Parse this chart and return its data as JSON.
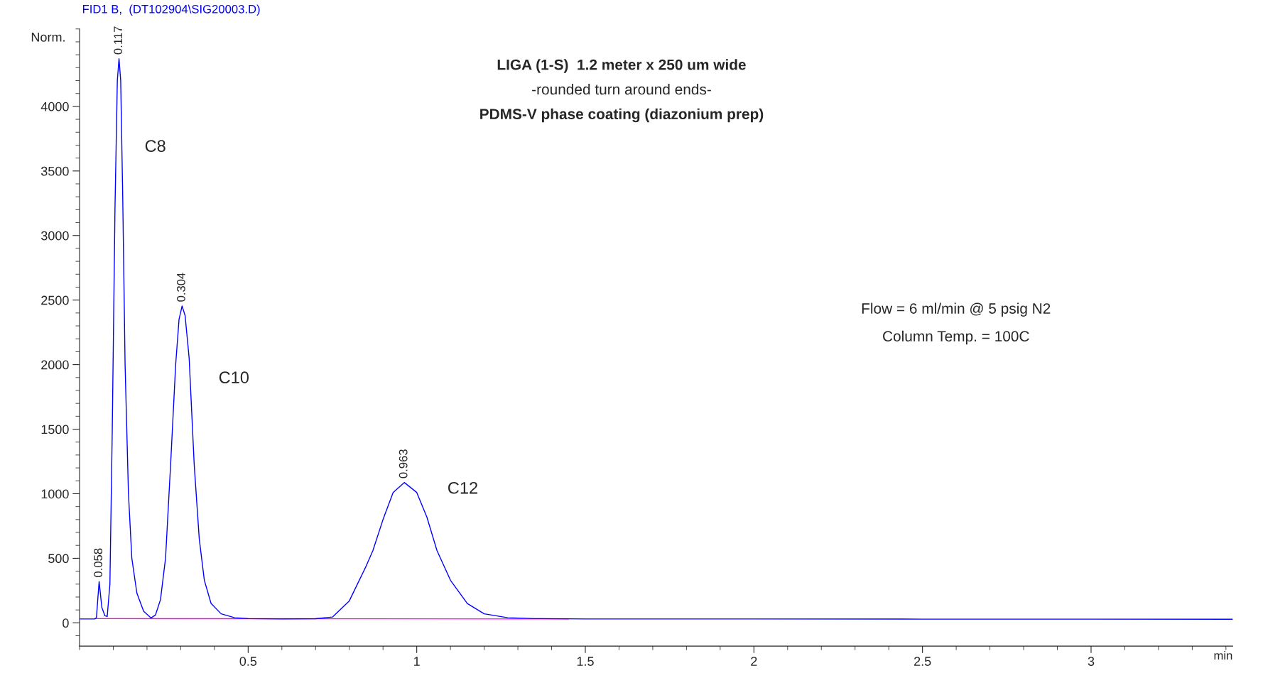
{
  "chart_data": {
    "type": "line",
    "title": "FID1 B,  (DT102904\\SIG20003.D)",
    "xlabel": "min",
    "ylabel": "Norm.",
    "x": [
      0.0,
      0.045,
      0.05,
      0.058,
      0.066,
      0.075,
      0.082,
      0.09,
      0.097,
      0.105,
      0.112,
      0.117,
      0.122,
      0.128,
      0.135,
      0.145,
      0.155,
      0.17,
      0.19,
      0.212,
      0.225,
      0.24,
      0.255,
      0.27,
      0.285,
      0.295,
      0.304,
      0.313,
      0.325,
      0.34,
      0.355,
      0.37,
      0.39,
      0.42,
      0.46,
      0.5,
      0.6,
      0.7,
      0.75,
      0.8,
      0.85,
      0.87,
      0.9,
      0.93,
      0.963,
      1.0,
      1.03,
      1.06,
      1.1,
      1.15,
      1.2,
      1.27,
      1.35,
      1.5,
      2.0,
      2.5,
      3.0,
      3.42
    ],
    "series": [
      {
        "color": "#0000ff",
        "values": [
          30,
          30,
          40,
          320,
          120,
          55,
          50,
          300,
          1500,
          3200,
          4200,
          4370,
          4200,
          3300,
          2000,
          1000,
          500,
          230,
          90,
          38,
          60,
          180,
          500,
          1225,
          2000,
          2350,
          2454,
          2380,
          2050,
          1225,
          650,
          330,
          150,
          70,
          40,
          33,
          30,
          32,
          45,
          170,
          440,
          560,
          800,
          1010,
          1087,
          1010,
          820,
          560,
          330,
          150,
          70,
          40,
          33,
          30,
          30,
          29,
          29,
          28
        ],
        "name": null
      },
      {
        "type": "line",
        "color": "#ff00ff",
        "x": [
          0.045,
          1.45
        ],
        "values": [
          33,
          30
        ]
      }
    ],
    "annotations": [
      "LIGA (1-S)  1.2 meter x 250 um wide",
      "-rounded turn around ends-",
      "PDMS-V phase coating (diazonium prep)",
      "Flow = 6 ml/min @ 5 psig N2",
      "Column Temp. = 100C",
      {
        "text": "0.058",
        "x": 0.058,
        "y": 320
      },
      {
        "text": "0.117",
        "x": 0.117,
        "y": 4370
      },
      {
        "text": "0.304",
        "x": 0.304,
        "y": 2454
      },
      {
        "text": "0.963",
        "x": 0.963,
        "y": 1087
      },
      "C8",
      "C10",
      "C12"
    ],
    "xlim": [
      0,
      3.42
    ],
    "ylim": [
      -180,
      4600
    ],
    "xticks": [
      0.5,
      1,
      1.5,
      2,
      2.5,
      3
    ],
    "yticks": [
      0,
      500,
      1000,
      1500,
      2000,
      2500,
      3000,
      3500,
      4000
    ],
    "grid": false,
    "legend": false,
    "marker": "none",
    "line_style": "solid"
  }
}
